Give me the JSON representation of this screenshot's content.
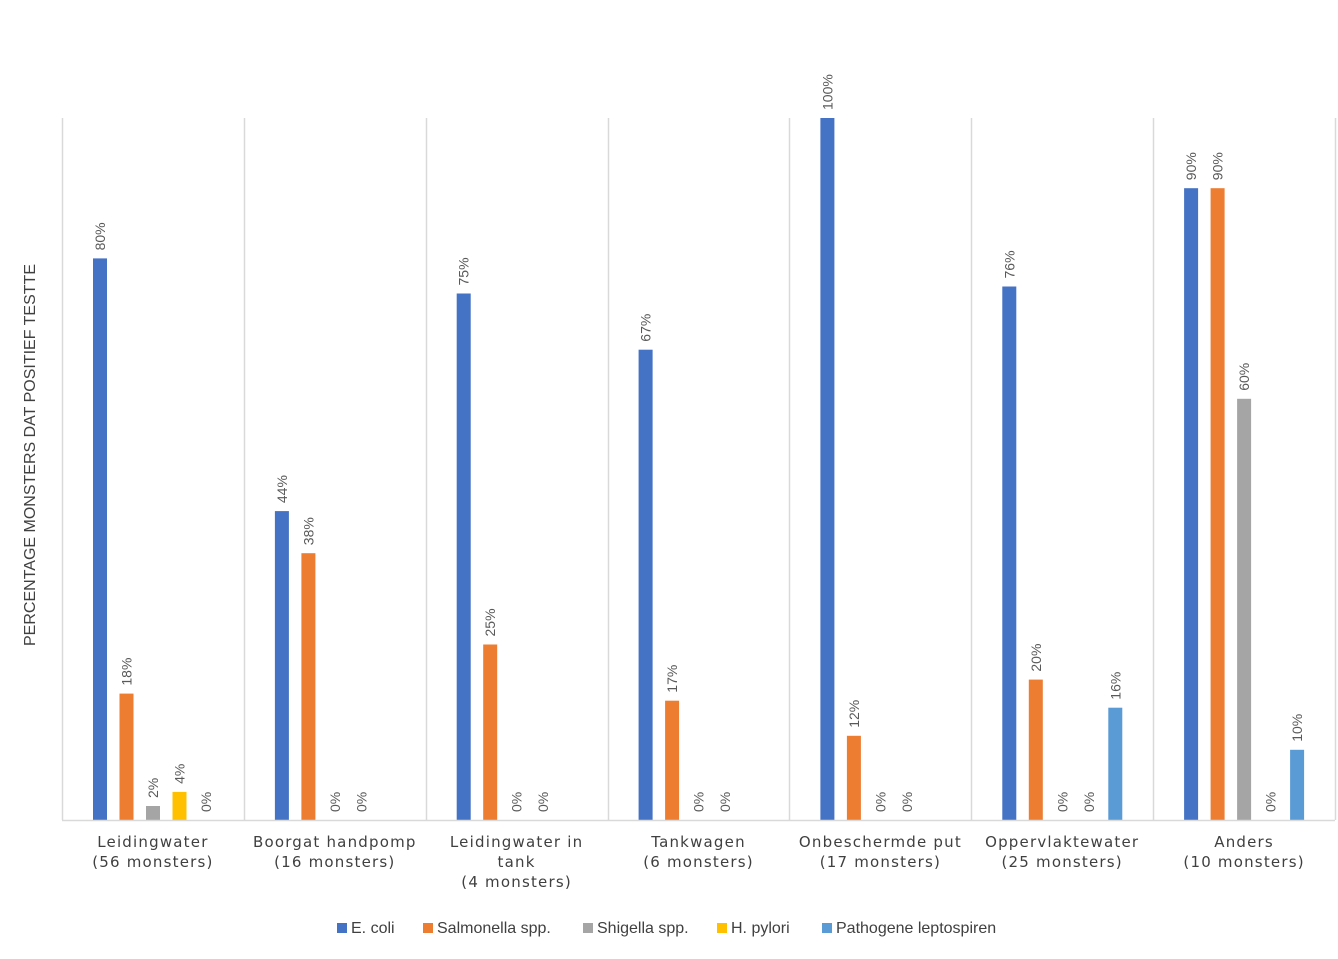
{
  "chart_data": {
    "type": "bar",
    "title": "",
    "xlabel": "",
    "ylabel": "PERCENTAGE MONSTERS DAT POSITIEF TESTTE",
    "ylim": [
      0,
      100
    ],
    "grid": false,
    "legend_position": "bottom",
    "categories": [
      [
        "Leidingwater",
        "(56 monsters)"
      ],
      [
        "Boorgat handpomp",
        "(16 monsters)"
      ],
      [
        "Leidingwater in",
        "tank",
        "(4 monsters)"
      ],
      [
        "Tankwagen",
        "(6 monsters)"
      ],
      [
        "Onbeschermde put",
        "(17 monsters)"
      ],
      [
        "Oppervlaktewater",
        "(25 monsters)"
      ],
      [
        "Anders",
        "(10 monsters)"
      ]
    ],
    "series": [
      {
        "name": "E. coli",
        "color": "#4472C4",
        "values": [
          80,
          44,
          75,
          67,
          100,
          76,
          90
        ],
        "labels": [
          "80%",
          "44%",
          "75%",
          "67%",
          "100%",
          "76%",
          "90%"
        ]
      },
      {
        "name": "Salmonella spp.",
        "color": "#ED7D31",
        "values": [
          18,
          38,
          25,
          17,
          12,
          20,
          90
        ],
        "labels": [
          "18%",
          "38%",
          "25%",
          "17%",
          "12%",
          "20%",
          "90%"
        ]
      },
      {
        "name": "Shigella spp.",
        "color": "#A5A5A5",
        "values": [
          2,
          0,
          0,
          0,
          0,
          0,
          60
        ],
        "labels": [
          "2%",
          "0%",
          "0%",
          "0%",
          "0%",
          "0%",
          "60%"
        ]
      },
      {
        "name": "H. pylori",
        "color": "#FFC000",
        "values": [
          4,
          0,
          0,
          0,
          0,
          0,
          0
        ],
        "labels": [
          "4%",
          "0%",
          "0%",
          "0%",
          "0%",
          "0%",
          "0%"
        ]
      },
      {
        "name": "Pathogene leptospiren",
        "color": "#5B9BD5",
        "values": [
          0,
          null,
          null,
          null,
          null,
          16,
          10
        ],
        "labels": [
          "0%",
          "",
          "",
          "",
          "",
          "16%",
          "10%"
        ]
      }
    ]
  }
}
